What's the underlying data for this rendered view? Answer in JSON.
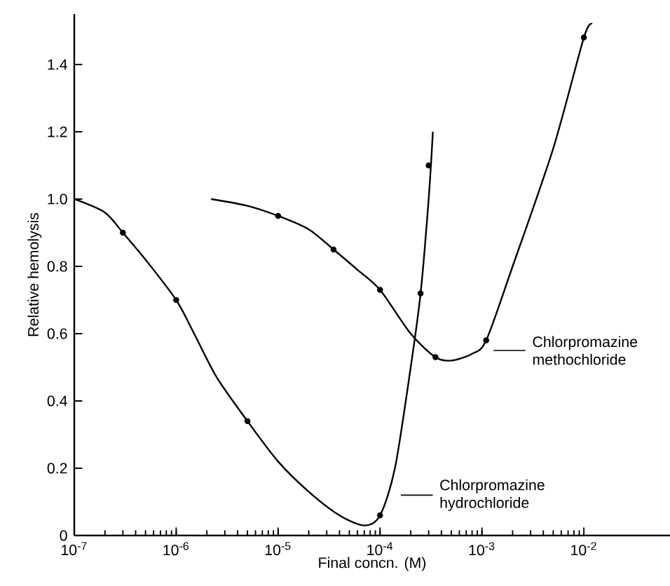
{
  "chart_data": {
    "type": "line",
    "xlabel": "Final concn. (M)",
    "ylabel": "Relative hemolysis",
    "log": "x",
    "xlim": [
      1e-07,
      0.07
    ],
    "ylim": [
      0,
      1.55
    ],
    "xticks": [
      {
        "value": 1e-07,
        "label": "10$^{-7}$"
      },
      {
        "value": 1e-06,
        "label": "10$^{-6}$"
      },
      {
        "value": 1e-05,
        "label": "10$^{-5}$"
      },
      {
        "value": 0.0001,
        "label": "10$^{-4}$"
      },
      {
        "value": 0.001,
        "label": "10$^{-3}$"
      },
      {
        "value": 0.01,
        "label": "10$^{-2}$"
      }
    ],
    "yticks": [
      0,
      0.2,
      0.4,
      0.6,
      0.8,
      {
        "value": 1,
        "label": "1.0"
      },
      1.2,
      1.4
    ],
    "grid": false,
    "legend": "right",
    "series": [
      {
        "name": "Chlorpromazine hydrochloride",
        "marker": "none",
        "color": "#000000",
        "x": [
          1e-07,
          2e-07,
          3e-07,
          5e-07,
          1e-06,
          1.5e-06,
          2.5e-06,
          5e-06,
          1e-05,
          2e-05,
          4e-05,
          7e-05,
          0.0001,
          0.00014,
          0.0002,
          0.00025,
          0.0003,
          0.00033
        ],
        "values": [
          1.0,
          0.96,
          0.9,
          0.82,
          0.7,
          0.6,
          0.47,
          0.34,
          0.22,
          0.13,
          0.06,
          0.03,
          0.06,
          0.2,
          0.5,
          0.72,
          1.0,
          1.2
        ]
      },
      {
        "type": "scatter",
        "marker": "circle",
        "color": "#000000",
        "x": [
          3e-07,
          1e-06,
          5e-06,
          0.0001,
          0.00025,
          0.0003
        ],
        "values": [
          0.9,
          0.7,
          0.34,
          0.06,
          0.72,
          1.1
        ]
      },
      {
        "name": "Chlorpromazine methochloride",
        "marker": "none",
        "color": "#000000",
        "x": [
          2.2e-06,
          5e-06,
          1e-05,
          2e-05,
          3.5e-05,
          6e-05,
          0.0001,
          0.0002,
          0.00035,
          0.0005,
          0.0008,
          0.0011,
          0.002,
          0.005,
          0.01,
          0.012
        ],
        "values": [
          1.0,
          0.98,
          0.95,
          0.91,
          0.85,
          0.79,
          0.73,
          0.6,
          0.53,
          0.52,
          0.54,
          0.58,
          0.8,
          1.15,
          1.48,
          1.52
        ]
      },
      {
        "type": "scatter",
        "marker": "circle",
        "color": "#000000",
        "x": [
          1e-05,
          3.5e-05,
          0.0001,
          0.00035,
          0.0011,
          0.01
        ],
        "values": [
          0.95,
          0.85,
          0.73,
          0.53,
          0.58,
          1.48
        ]
      }
    ]
  }
}
